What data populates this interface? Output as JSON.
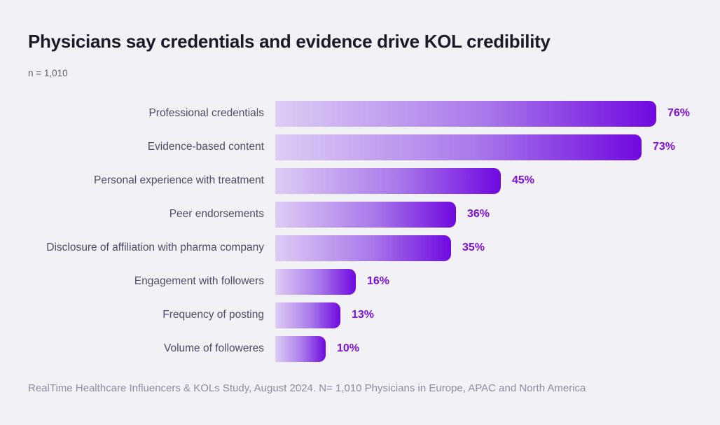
{
  "header": {
    "title": "Physicians say credentials and evidence drive KOL credibility",
    "sample_size": "n = 1,010"
  },
  "footer": {
    "source": "RealTime Healthcare Influencers & KOLs Study, August 2024. N= 1,010 Physicians in Europe, APAC and North America"
  },
  "colors": {
    "background": "#f2f1f6",
    "title_text": "#1b1a28",
    "category_label_text": "#4c4c65",
    "value_label_text": "#7c10dc",
    "bar_gradient_start": "#ddccf4",
    "bar_gradient_mid": "#a878ea",
    "bar_gradient_end": "#7009e0",
    "source_text": "#8d8ca3"
  },
  "chart_data": {
    "type": "bar",
    "orientation": "horizontal",
    "title": "Physicians say credentials and evidence drive KOL credibility",
    "subtitle": "n = 1,010",
    "categories": [
      "Professional credentials",
      "Evidence-based content",
      "Personal experience with treatment",
      "Peer endorsements",
      "Disclosure of affiliation with pharma company",
      "Engagement with followers",
      "Frequency of posting",
      "Volume of followeres"
    ],
    "values": [
      76,
      73,
      45,
      36,
      35,
      16,
      13,
      10
    ],
    "value_labels": [
      "76%",
      "73%",
      "45%",
      "36%",
      "35%",
      "16%",
      "13%",
      "10%"
    ],
    "unit": "%",
    "xlim": [
      0,
      100
    ],
    "grid": false,
    "legend": "none",
    "value_label_position": "right-of-bar",
    "source": "RealTime Healthcare Influencers & KOLs Study, August 2024. N= 1,010 Physicians in Europe, APAC and North America"
  }
}
